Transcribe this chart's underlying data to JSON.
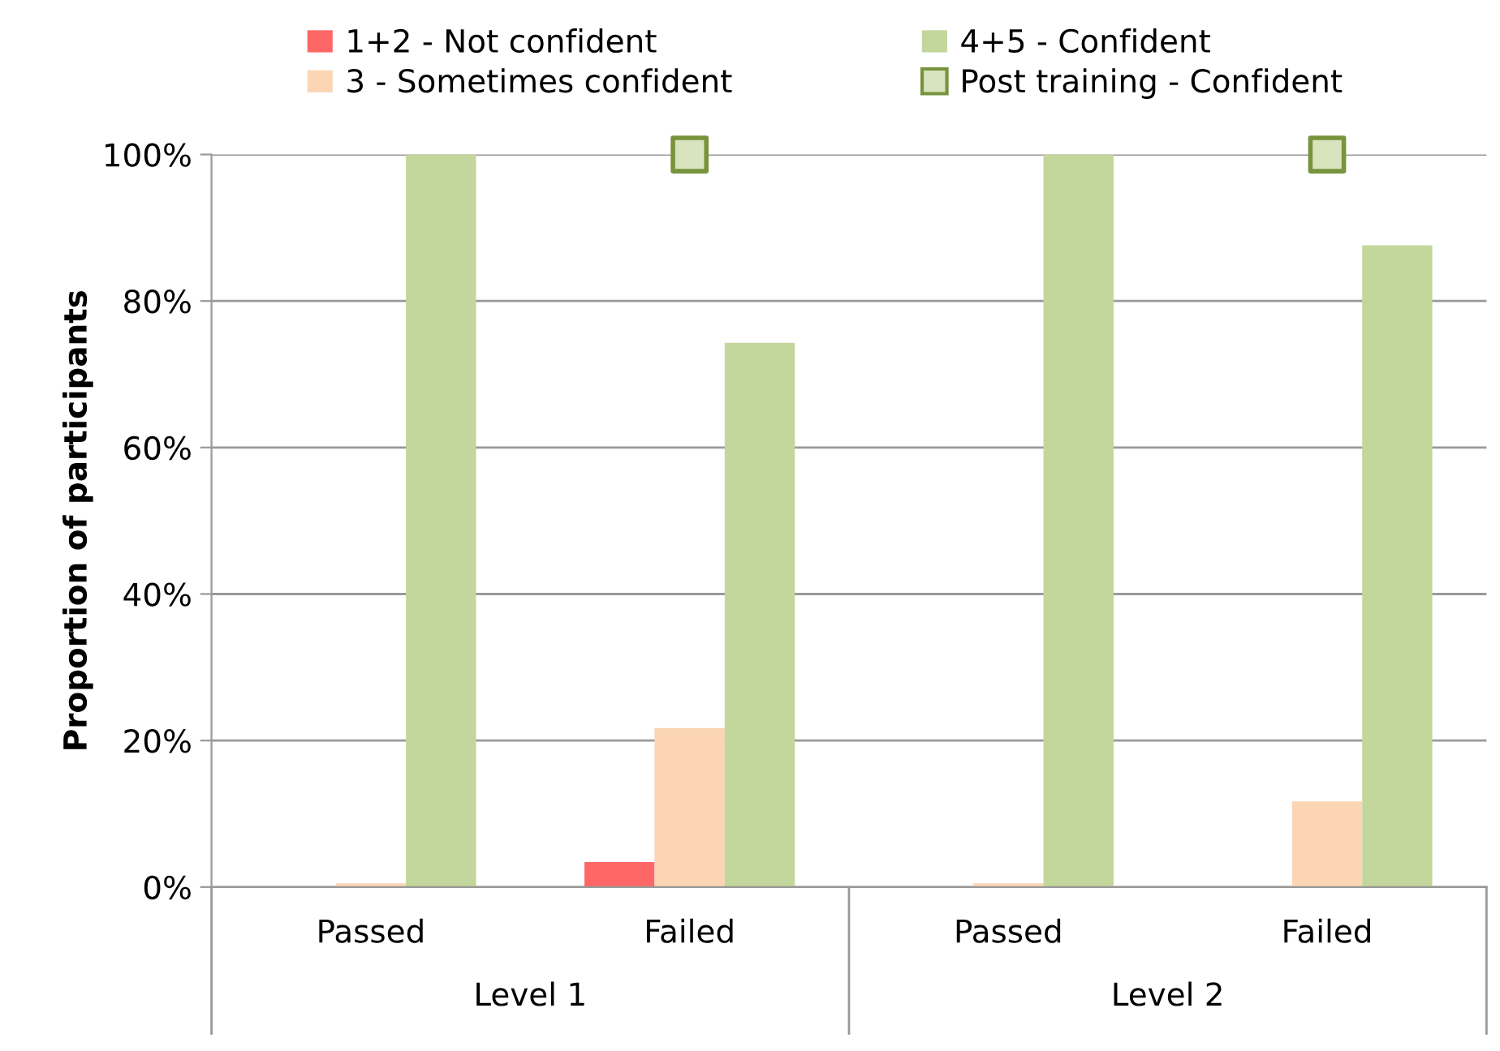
{
  "chart_data": {
    "type": "bar",
    "ylabel": "Proportion of participants",
    "categories": [
      "Passed",
      "Failed",
      "Passed",
      "Failed"
    ],
    "series": [
      {
        "name": "1+2 - Not confident",
        "color": "#ff6666",
        "values": [
          0,
          3.4,
          0,
          0
        ]
      },
      {
        "name": "3 - Sometimes confident",
        "color": "#fcd5b5",
        "values": [
          0.5,
          21.7,
          0.5,
          11.7
        ]
      },
      {
        "name": "4+5 - Confident",
        "color": "#c3d69b",
        "values": [
          100,
          74.3,
          100,
          87.6
        ]
      },
      {
        "name": "Post training - Confident",
        "type": "scatter",
        "marker": "square",
        "color": "#77933c",
        "values": [
          null,
          100,
          null,
          100
        ]
      }
    ],
    "annotations": [
      "Level 1",
      "Level 2"
    ],
    "ylim": [
      0,
      100
    ],
    "yticks": [
      {
        "value": 0,
        "label": "0%"
      },
      {
        "value": 20,
        "label": "20%"
      },
      {
        "value": 40,
        "label": "40%"
      },
      {
        "value": 60,
        "label": "60%"
      },
      {
        "value": 80,
        "label": "80%"
      },
      {
        "value": 100,
        "label": "100%"
      }
    ],
    "grid": "y",
    "legend": "top"
  }
}
